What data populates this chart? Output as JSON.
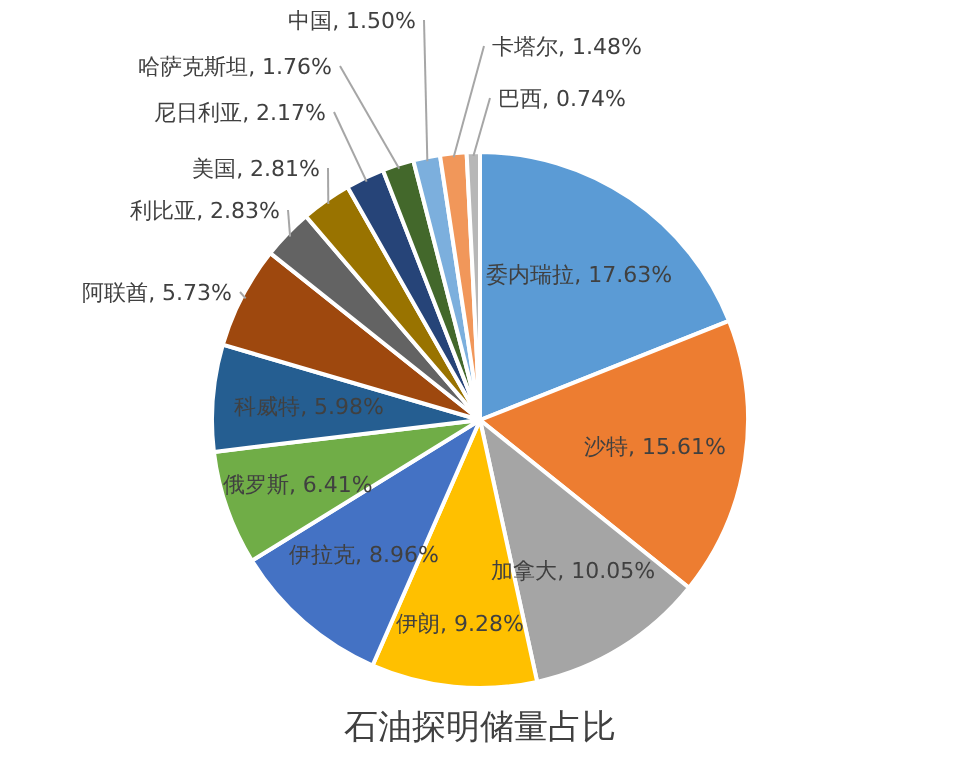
{
  "chart_data": {
    "type": "pie",
    "title": "石油探明储量占比",
    "categories": [
      "委内瑞拉",
      "沙特",
      "加拿大",
      "伊朗",
      "伊拉克",
      "俄罗斯",
      "科威特",
      "阿联酋",
      "利比亚",
      "美国",
      "尼日利亚",
      "哈萨克斯坦",
      "中国",
      "卡塔尔",
      "巴西"
    ],
    "values": [
      17.63,
      15.61,
      10.05,
      9.28,
      8.96,
      6.41,
      5.98,
      5.73,
      2.83,
      2.81,
      2.17,
      1.76,
      1.5,
      1.48,
      0.74
    ],
    "value_labels": [
      "17.63%",
      "15.61%",
      "10.05%",
      "9.28%",
      "8.96%",
      "6.41%",
      "5.98%",
      "5.73%",
      "2.83%",
      "2.81%",
      "2.17%",
      "1.76%",
      "1.50%",
      "1.48%",
      "0.74%"
    ],
    "colors": [
      "#5b9bd5",
      "#ed7d31",
      "#a5a5a5",
      "#ffc000",
      "#4472c4",
      "#70ad47",
      "#255e91",
      "#9e480e",
      "#636363",
      "#997300",
      "#264478",
      "#43682b",
      "#7cafdd",
      "#f1975a",
      "#b7b7b7"
    ],
    "legend": false
  }
}
